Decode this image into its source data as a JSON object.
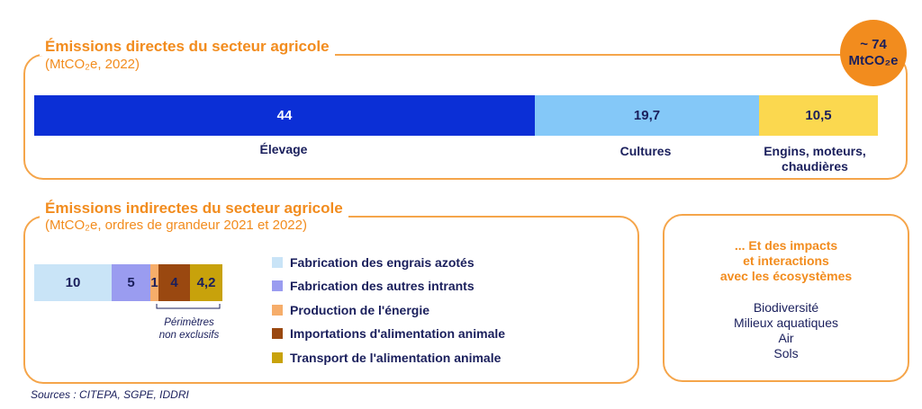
{
  "chart_data": [
    {
      "type": "bar",
      "orientation": "horizontal-stacked",
      "title": "Émissions directes du secteur agricole",
      "subtitle": "(MtCO₂e, 2022)",
      "total_label": "~ 74 MtCO₂e",
      "series": [
        {
          "name": "Élevage",
          "value": 44,
          "label": "44",
          "color": "#0b2fd6"
        },
        {
          "name": "Cultures",
          "value": 19.7,
          "label": "19,7",
          "color": "#84c8f8"
        },
        {
          "name": "Engins, moteurs, chaudières",
          "value": 10.5,
          "label": "10,5",
          "color": "#fbd84f"
        }
      ]
    },
    {
      "type": "bar",
      "orientation": "horizontal-stacked",
      "title": "Émissions indirectes du secteur agricole",
      "subtitle": "(MtCO₂e, ordres de grandeur 2021 et 2022)",
      "series": [
        {
          "name": "Fabrication des engrais azotés",
          "value": 10,
          "label": "10",
          "color": "#c9e4f7"
        },
        {
          "name": "Fabrication des autres intrants",
          "value": 5,
          "label": "5",
          "color": "#9a9cf0"
        },
        {
          "name": "Production de l'énergie",
          "value": 1,
          "label": "1",
          "color": "#f6ad6a"
        },
        {
          "name": "Importations d'alimentation animale",
          "value": 4,
          "label": "4",
          "color": "#9a4810"
        },
        {
          "name": "Transport de l'alimentation animale",
          "value": 4.2,
          "label": "4,2",
          "color": "#c8a20b"
        }
      ],
      "annotation": "Périmètres non exclusifs"
    }
  ],
  "direct": {
    "title": "Émissions directes du secteur agricole",
    "subtitle": "(MtCO₂e, 2022)",
    "badge_line1": "~ 74",
    "badge_line2": "MtCO₂e",
    "cat_label_1": "Élevage",
    "cat_label_2": "Cultures",
    "cat_label_3a": "Engins, moteurs,",
    "cat_label_3b": "chaudières"
  },
  "indirect": {
    "title": "Émissions indirectes du secteur agricole",
    "subtitle": "(MtCO₂e, ordres de grandeur 2021 et 2022)",
    "note_line1": "Périmètres",
    "note_line2": "non exclusifs"
  },
  "impacts": {
    "title_line1": "... Et des impacts",
    "title_line2": "et interactions",
    "title_line3": "avec les écosystèmes",
    "items": [
      "Biodiversité",
      "Milieux aquatiques",
      "Air",
      "Sols"
    ]
  },
  "sources": "Sources : CITEPA, SGPE, IDDRI"
}
